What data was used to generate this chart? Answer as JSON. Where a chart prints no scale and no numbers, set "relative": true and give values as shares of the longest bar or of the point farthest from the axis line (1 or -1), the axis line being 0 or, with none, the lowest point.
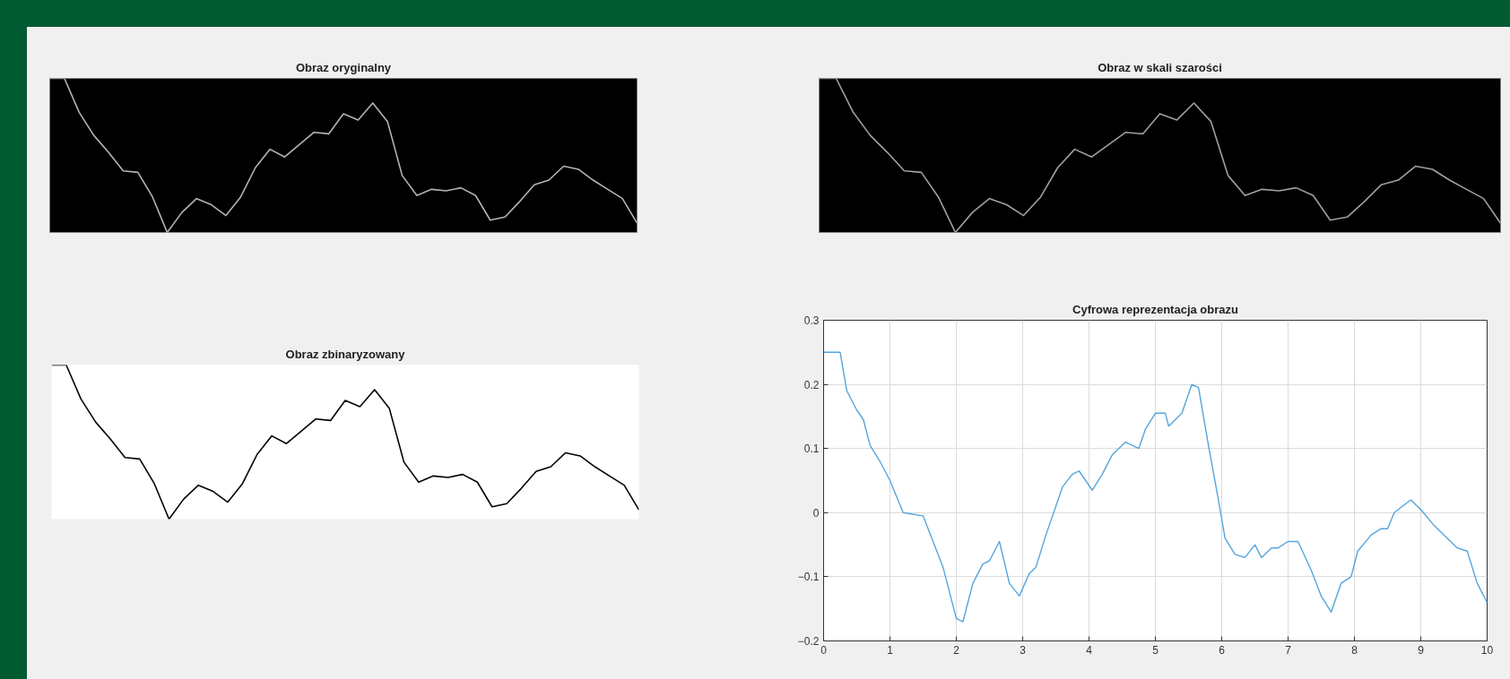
{
  "chart_data": [
    {
      "type": "line",
      "title": "Obraz oryginalny",
      "relative": true,
      "grid": false,
      "categories": [
        null,
        null,
        null,
        null,
        null,
        null,
        null,
        null,
        null,
        null,
        null,
        null,
        null,
        null,
        null,
        null,
        null,
        null,
        null,
        null,
        null,
        null,
        null,
        null,
        null,
        null,
        null,
        null,
        null,
        null,
        null,
        null,
        null,
        null,
        null,
        null,
        null,
        null,
        null,
        null,
        null
      ],
      "series": [
        {
          "color": "#b4b4b4",
          "values": [
            1.0,
            1.0,
            0.78,
            0.63,
            0.52,
            0.4,
            0.39,
            0.23,
            0,
            0.13,
            0.22,
            0.18,
            0.11,
            0.23,
            0.42,
            0.54,
            0.49,
            0.57,
            0.65,
            0.64,
            0.77,
            0.73,
            0.84,
            0.72,
            0.37,
            0.24,
            0.28,
            0.27,
            0.29,
            0.24,
            0.08,
            0.1,
            0.2,
            0.31,
            0.34,
            0.43,
            0.41,
            0.34,
            0.28,
            0.22,
            0.06
          ]
        }
      ]
    },
    {
      "type": "line",
      "title": "Obraz w skali szarości",
      "relative": true,
      "grid": false,
      "categories": [
        null,
        null,
        null,
        null,
        null,
        null,
        null,
        null,
        null,
        null,
        null,
        null,
        null,
        null,
        null,
        null,
        null,
        null,
        null,
        null,
        null,
        null,
        null,
        null,
        null,
        null,
        null,
        null,
        null,
        null,
        null,
        null,
        null,
        null,
        null,
        null,
        null,
        null,
        null,
        null,
        null
      ],
      "series": [
        {
          "color": "#a0a0a0",
          "values": [
            1.0,
            1.0,
            0.78,
            0.63,
            0.52,
            0.4,
            0.39,
            0.23,
            0,
            0.13,
            0.22,
            0.18,
            0.11,
            0.23,
            0.42,
            0.54,
            0.49,
            0.57,
            0.65,
            0.64,
            0.77,
            0.73,
            0.84,
            0.72,
            0.37,
            0.24,
            0.28,
            0.27,
            0.29,
            0.24,
            0.08,
            0.1,
            0.2,
            0.31,
            0.34,
            0.43,
            0.41,
            0.34,
            0.28,
            0.22,
            0.06
          ]
        }
      ]
    },
    {
      "type": "line",
      "title": "Obraz zbinaryzowany",
      "relative": true,
      "grid": false,
      "categories": [
        null,
        null,
        null,
        null,
        null,
        null,
        null,
        null,
        null,
        null,
        null,
        null,
        null,
        null,
        null,
        null,
        null,
        null,
        null,
        null,
        null,
        null,
        null,
        null,
        null,
        null,
        null,
        null,
        null,
        null,
        null,
        null,
        null,
        null,
        null,
        null,
        null,
        null,
        null,
        null,
        null
      ],
      "series": [
        {
          "color": "#000000",
          "values": [
            1.0,
            1.0,
            0.78,
            0.63,
            0.52,
            0.4,
            0.39,
            0.23,
            0,
            0.13,
            0.22,
            0.18,
            0.11,
            0.23,
            0.42,
            0.54,
            0.49,
            0.57,
            0.65,
            0.64,
            0.77,
            0.73,
            0.84,
            0.72,
            0.37,
            0.24,
            0.28,
            0.27,
            0.29,
            0.24,
            0.08,
            0.1,
            0.2,
            0.31,
            0.34,
            0.43,
            0.41,
            0.34,
            0.28,
            0.22,
            0.06
          ]
        }
      ]
    },
    {
      "type": "line",
      "title": "Cyfrowa reprezentacja obrazu",
      "grid": true,
      "xlim": [
        0,
        10
      ],
      "xticks": [
        0,
        1,
        2,
        3,
        4,
        5,
        6,
        7,
        8,
        9,
        10
      ],
      "ylim": [
        -0.2,
        0.3
      ],
      "yticks": [
        -0.2,
        -0.1,
        0,
        0.1,
        0.2,
        0.3
      ],
      "x": [
        0,
        0.25,
        0.35,
        0.5,
        0.6,
        0.7,
        0.85,
        1.0,
        1.2,
        1.5,
        1.65,
        1.8,
        2.0,
        2.1,
        2.25,
        2.4,
        2.5,
        2.65,
        2.8,
        2.95,
        3.1,
        3.2,
        3.35,
        3.6,
        3.75,
        3.85,
        4.05,
        4.2,
        4.35,
        4.55,
        4.65,
        4.75,
        4.85,
        5.0,
        5.15,
        5.2,
        5.4,
        5.55,
        5.65,
        5.8,
        5.95,
        6.05,
        6.2,
        6.35,
        6.5,
        6.6,
        6.75,
        6.85,
        7.0,
        7.15,
        7.35,
        7.5,
        7.65,
        7.8,
        7.95,
        8.05,
        8.25,
        8.4,
        8.5,
        8.6,
        8.85,
        9.0,
        9.2,
        9.4,
        9.55,
        9.7,
        9.85,
        10.0
      ],
      "series": [
        {
          "color": "#55a5dd",
          "values": [
            0.25,
            0.25,
            0.19,
            0.16,
            0.145,
            0.105,
            0.08,
            0.05,
            0.0,
            -0.005,
            -0.045,
            -0.085,
            -0.165,
            -0.17,
            -0.11,
            -0.08,
            -0.075,
            -0.045,
            -0.11,
            -0.13,
            -0.095,
            -0.085,
            -0.035,
            0.04,
            0.06,
            0.065,
            0.035,
            0.06,
            0.09,
            0.11,
            0.105,
            0.1,
            0.13,
            0.155,
            0.155,
            0.135,
            0.155,
            0.2,
            0.195,
            0.105,
            0.02,
            -0.04,
            -0.065,
            -0.07,
            -0.05,
            -0.07,
            -0.055,
            -0.055,
            -0.045,
            -0.045,
            -0.09,
            -0.13,
            -0.155,
            -0.11,
            -0.1,
            -0.06,
            -0.035,
            -0.025,
            -0.025,
            0.0,
            0.02,
            0.005,
            -0.02,
            -0.04,
            -0.055,
            -0.06,
            -0.11,
            -0.14
          ]
        }
      ]
    }
  ]
}
